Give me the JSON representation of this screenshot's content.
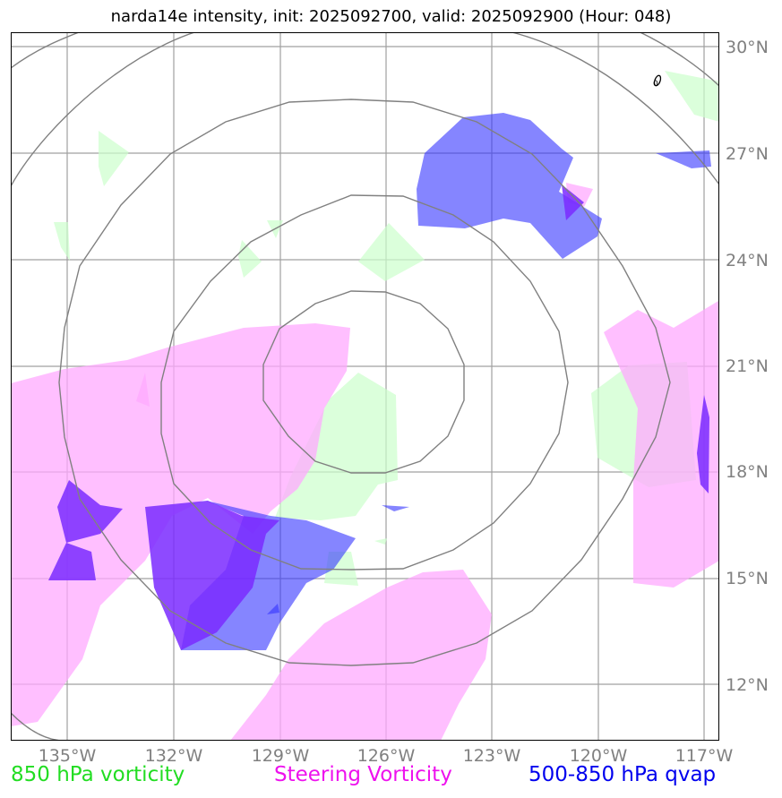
{
  "title": "narda14e intensity, init: 2025092700, valid: 2025092900 (Hour: 048)",
  "colors": {
    "vorticity_850": "#ccffcc",
    "steering_vorticity": "#ffaaff",
    "qvap": "#3333ff",
    "qvap_overlap": "#7a2aff",
    "rings": "#808080",
    "grid": "#a0a0a0"
  },
  "map": {
    "lon_labels": [
      "135°W",
      "132°W",
      "129°W",
      "126°W",
      "123°W",
      "120°W",
      "117°W"
    ],
    "lat_labels": [
      "30°N",
      "27°N",
      "24°N",
      "21°N",
      "18°N",
      "15°N",
      "12°N"
    ],
    "ring_count": 5,
    "contour_label": "0"
  },
  "legend": {
    "vorticity_850": "850 hPa vorticity",
    "steering_vorticity": "Steering Vorticity",
    "qvap": "500-850 hPa qvap"
  }
}
